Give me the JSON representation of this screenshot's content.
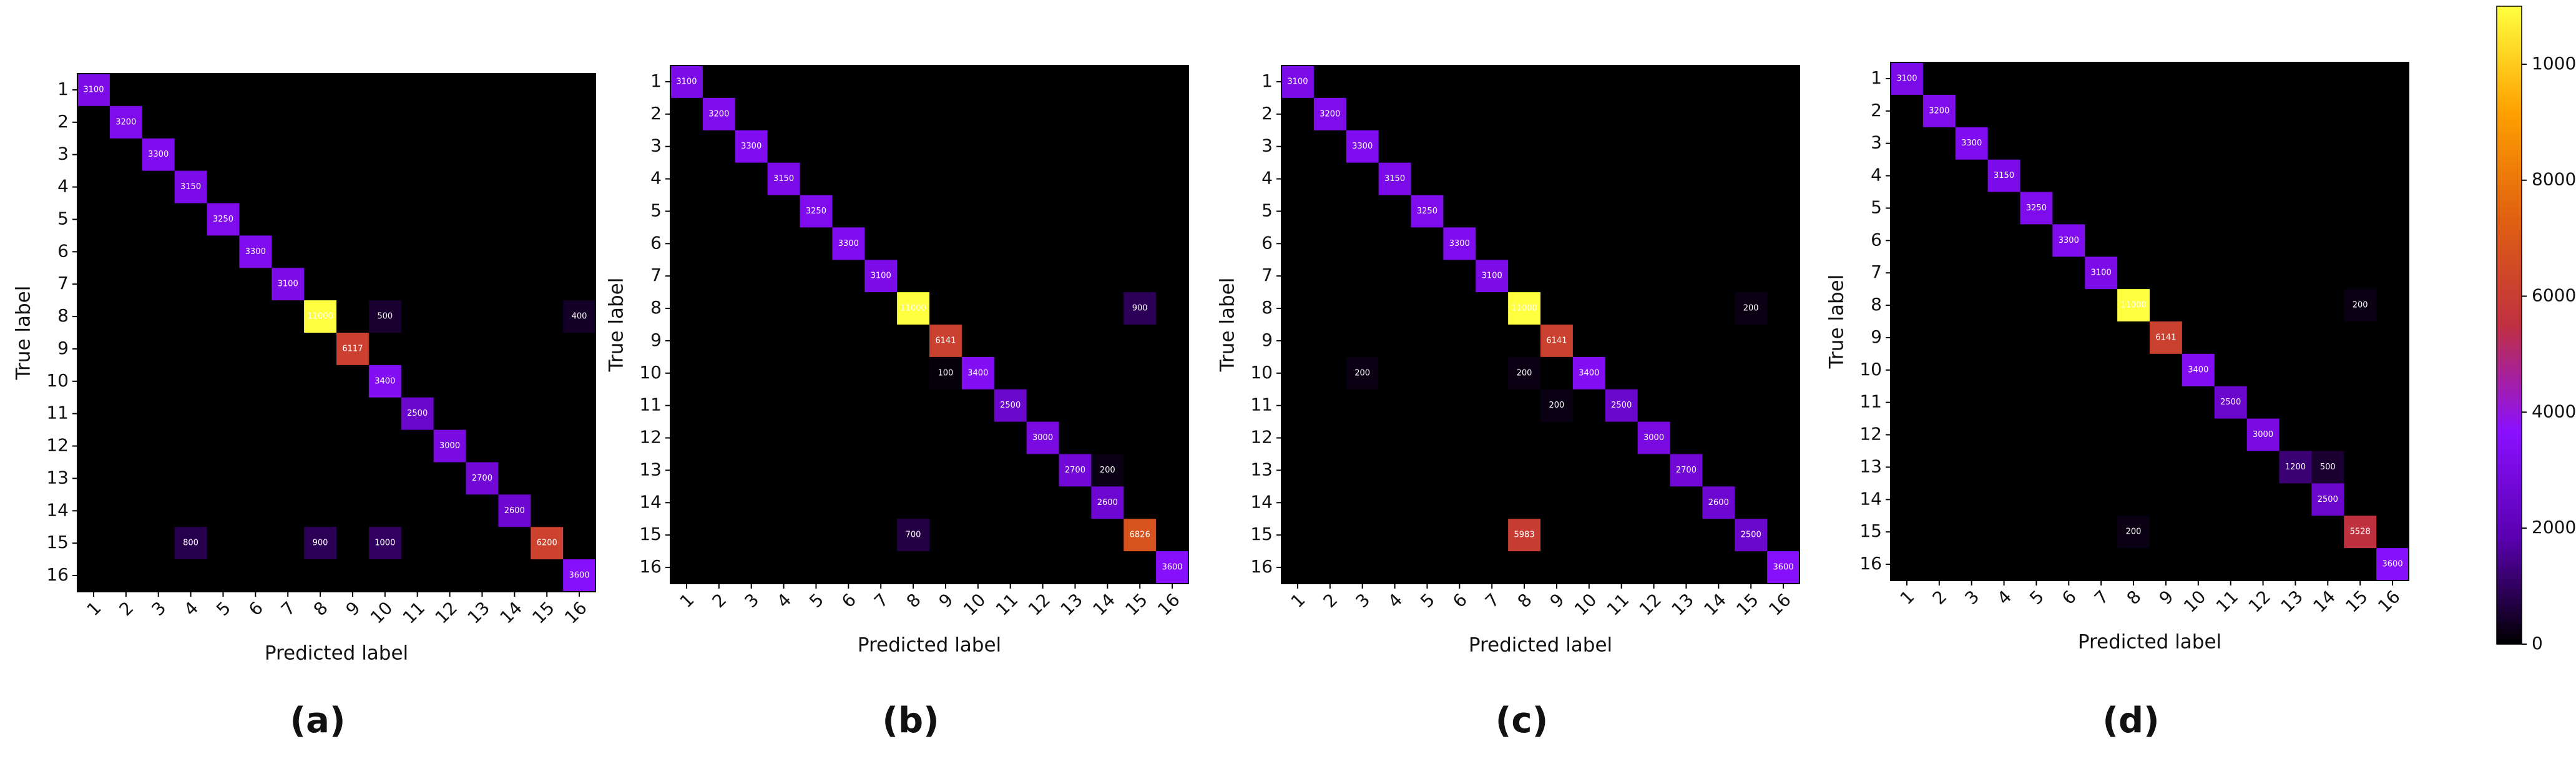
{
  "chart_data": [
    {
      "type": "heatmap",
      "caption": "(a)",
      "xlabel": "Predicted label",
      "ylabel": "True label",
      "categories": [
        "1",
        "2",
        "3",
        "4",
        "5",
        "6",
        "7",
        "8",
        "9",
        "10",
        "11",
        "12",
        "13",
        "14",
        "15",
        "16"
      ],
      "zlim": [
        0,
        11000
      ],
      "colorscale": [
        "#000000",
        "#5a00b0",
        "#8a10ff",
        "#c03040",
        "#e06010",
        "#ffa000",
        "#ffff40"
      ],
      "values": [
        [
          3100,
          0,
          0,
          0,
          0,
          0,
          0,
          0,
          0,
          0,
          0,
          0,
          0,
          0,
          0,
          0
        ],
        [
          0,
          3200,
          0,
          0,
          0,
          0,
          0,
          0,
          0,
          0,
          0,
          0,
          0,
          0,
          0,
          0
        ],
        [
          0,
          0,
          3300,
          0,
          0,
          0,
          0,
          0,
          0,
          0,
          0,
          0,
          0,
          0,
          0,
          0
        ],
        [
          0,
          0,
          0,
          3150,
          0,
          0,
          0,
          0,
          0,
          0,
          0,
          0,
          0,
          0,
          0,
          0
        ],
        [
          0,
          0,
          0,
          0,
          3250,
          0,
          0,
          0,
          0,
          0,
          0,
          0,
          0,
          0,
          0,
          0
        ],
        [
          0,
          0,
          0,
          0,
          0,
          3300,
          0,
          0,
          0,
          0,
          0,
          0,
          0,
          0,
          0,
          0
        ],
        [
          0,
          0,
          0,
          0,
          0,
          0,
          3100,
          0,
          0,
          0,
          0,
          0,
          0,
          0,
          0,
          0
        ],
        [
          0,
          0,
          0,
          0,
          0,
          0,
          0,
          11000,
          0,
          500,
          0,
          0,
          0,
          0,
          0,
          400
        ],
        [
          0,
          0,
          0,
          0,
          0,
          0,
          0,
          0,
          6117,
          0,
          0,
          0,
          0,
          0,
          0,
          0
        ],
        [
          0,
          0,
          0,
          0,
          0,
          0,
          0,
          0,
          0,
          3400,
          0,
          0,
          0,
          0,
          0,
          0
        ],
        [
          0,
          0,
          0,
          0,
          0,
          0,
          0,
          0,
          0,
          0,
          2500,
          0,
          0,
          0,
          0,
          0
        ],
        [
          0,
          0,
          0,
          0,
          0,
          0,
          0,
          0,
          0,
          0,
          0,
          3000,
          0,
          0,
          0,
          0
        ],
        [
          0,
          0,
          0,
          0,
          0,
          0,
          0,
          0,
          0,
          0,
          0,
          0,
          2700,
          0,
          0,
          0
        ],
        [
          0,
          0,
          0,
          0,
          0,
          0,
          0,
          0,
          0,
          0,
          0,
          0,
          0,
          2600,
          0,
          0
        ],
        [
          0,
          0,
          0,
          800,
          0,
          0,
          0,
          900,
          0,
          1000,
          0,
          0,
          0,
          0,
          6200,
          0
        ],
        [
          0,
          0,
          0,
          0,
          0,
          0,
          0,
          0,
          0,
          0,
          0,
          0,
          0,
          0,
          0,
          3600
        ]
      ]
    },
    {
      "type": "heatmap",
      "caption": "(b)",
      "xlabel": "Predicted label",
      "ylabel": "True label",
      "categories": [
        "1",
        "2",
        "3",
        "4",
        "5",
        "6",
        "7",
        "8",
        "9",
        "10",
        "11",
        "12",
        "13",
        "14",
        "15",
        "16"
      ],
      "zlim": [
        0,
        11000
      ],
      "colorscale": [
        "#000000",
        "#5a00b0",
        "#8a10ff",
        "#c03040",
        "#e06010",
        "#ffa000",
        "#ffff40"
      ],
      "values": [
        [
          3100,
          0,
          0,
          0,
          0,
          0,
          0,
          0,
          0,
          0,
          0,
          0,
          0,
          0,
          0,
          0
        ],
        [
          0,
          3200,
          0,
          0,
          0,
          0,
          0,
          0,
          0,
          0,
          0,
          0,
          0,
          0,
          0,
          0
        ],
        [
          0,
          0,
          3300,
          0,
          0,
          0,
          0,
          0,
          0,
          0,
          0,
          0,
          0,
          0,
          0,
          0
        ],
        [
          0,
          0,
          0,
          3150,
          0,
          0,
          0,
          0,
          0,
          0,
          0,
          0,
          0,
          0,
          0,
          0
        ],
        [
          0,
          0,
          0,
          0,
          3250,
          0,
          0,
          0,
          0,
          0,
          0,
          0,
          0,
          0,
          0,
          0
        ],
        [
          0,
          0,
          0,
          0,
          0,
          3300,
          0,
          0,
          0,
          0,
          0,
          0,
          0,
          0,
          0,
          0
        ],
        [
          0,
          0,
          0,
          0,
          0,
          0,
          3100,
          0,
          0,
          0,
          0,
          0,
          0,
          0,
          0,
          0
        ],
        [
          0,
          0,
          0,
          0,
          0,
          0,
          0,
          11000,
          0,
          0,
          0,
          0,
          0,
          0,
          900,
          0
        ],
        [
          0,
          0,
          0,
          0,
          0,
          0,
          0,
          0,
          6141,
          0,
          0,
          0,
          0,
          0,
          0,
          0
        ],
        [
          0,
          0,
          0,
          0,
          0,
          0,
          0,
          0,
          100,
          3400,
          0,
          0,
          0,
          0,
          0,
          0
        ],
        [
          0,
          0,
          0,
          0,
          0,
          0,
          0,
          0,
          0,
          0,
          2500,
          0,
          0,
          0,
          0,
          0
        ],
        [
          0,
          0,
          0,
          0,
          0,
          0,
          0,
          0,
          0,
          0,
          0,
          3000,
          0,
          0,
          0,
          0
        ],
        [
          0,
          0,
          0,
          0,
          0,
          0,
          0,
          0,
          0,
          0,
          0,
          0,
          2700,
          200,
          0,
          0
        ],
        [
          0,
          0,
          0,
          0,
          0,
          0,
          0,
          0,
          0,
          0,
          0,
          0,
          0,
          2600,
          0,
          0
        ],
        [
          0,
          0,
          0,
          0,
          0,
          0,
          0,
          700,
          0,
          0,
          0,
          0,
          0,
          0,
          6826,
          0
        ],
        [
          0,
          0,
          0,
          0,
          0,
          0,
          0,
          0,
          0,
          0,
          0,
          0,
          0,
          0,
          0,
          3600
        ]
      ]
    },
    {
      "type": "heatmap",
      "caption": "(c)",
      "xlabel": "Predicted label",
      "ylabel": "True label",
      "categories": [
        "1",
        "2",
        "3",
        "4",
        "5",
        "6",
        "7",
        "8",
        "9",
        "10",
        "11",
        "12",
        "13",
        "14",
        "15",
        "16"
      ],
      "zlim": [
        0,
        11000
      ],
      "colorscale": [
        "#000000",
        "#5a00b0",
        "#8a10ff",
        "#c03040",
        "#e06010",
        "#ffa000",
        "#ffff40"
      ],
      "values": [
        [
          3100,
          0,
          0,
          0,
          0,
          0,
          0,
          0,
          0,
          0,
          0,
          0,
          0,
          0,
          0,
          0
        ],
        [
          0,
          3200,
          0,
          0,
          0,
          0,
          0,
          0,
          0,
          0,
          0,
          0,
          0,
          0,
          0,
          0
        ],
        [
          0,
          0,
          3300,
          0,
          0,
          0,
          0,
          0,
          0,
          0,
          0,
          0,
          0,
          0,
          0,
          0
        ],
        [
          0,
          0,
          0,
          3150,
          0,
          0,
          0,
          0,
          0,
          0,
          0,
          0,
          0,
          0,
          0,
          0
        ],
        [
          0,
          0,
          0,
          0,
          3250,
          0,
          0,
          0,
          0,
          0,
          0,
          0,
          0,
          0,
          0,
          0
        ],
        [
          0,
          0,
          0,
          0,
          0,
          3300,
          0,
          0,
          0,
          0,
          0,
          0,
          0,
          0,
          0,
          0
        ],
        [
          0,
          0,
          0,
          0,
          0,
          0,
          3100,
          0,
          0,
          0,
          0,
          0,
          0,
          0,
          0,
          0
        ],
        [
          0,
          0,
          0,
          0,
          0,
          0,
          0,
          11000,
          0,
          0,
          0,
          0,
          0,
          0,
          200,
          0
        ],
        [
          0,
          0,
          0,
          0,
          0,
          0,
          0,
          0,
          6141,
          0,
          0,
          0,
          0,
          0,
          0,
          0
        ],
        [
          0,
          0,
          200,
          0,
          0,
          0,
          0,
          200,
          0,
          3400,
          0,
          0,
          0,
          0,
          0,
          0
        ],
        [
          0,
          0,
          0,
          0,
          0,
          0,
          0,
          0,
          200,
          0,
          2500,
          0,
          0,
          0,
          0,
          0
        ],
        [
          0,
          0,
          0,
          0,
          0,
          0,
          0,
          0,
          0,
          0,
          0,
          3000,
          0,
          0,
          0,
          0
        ],
        [
          0,
          0,
          0,
          0,
          0,
          0,
          0,
          0,
          0,
          0,
          0,
          0,
          2700,
          0,
          0,
          0
        ],
        [
          0,
          0,
          0,
          0,
          0,
          0,
          0,
          0,
          0,
          0,
          0,
          0,
          0,
          2600,
          0,
          0
        ],
        [
          0,
          0,
          0,
          0,
          0,
          0,
          0,
          5983,
          0,
          0,
          0,
          0,
          0,
          0,
          2500,
          0
        ],
        [
          0,
          0,
          0,
          0,
          0,
          0,
          0,
          0,
          0,
          0,
          0,
          0,
          0,
          0,
          0,
          3600
        ]
      ]
    },
    {
      "type": "heatmap",
      "caption": "(d)",
      "xlabel": "Predicted label",
      "ylabel": "True label",
      "categories": [
        "1",
        "2",
        "3",
        "4",
        "5",
        "6",
        "7",
        "8",
        "9",
        "10",
        "11",
        "12",
        "13",
        "14",
        "15",
        "16"
      ],
      "zlim": [
        0,
        11000
      ],
      "zticks": [
        0,
        2000,
        4000,
        6000,
        8000,
        10000
      ],
      "colorbar": true,
      "colorscale": [
        "#000000",
        "#5a00b0",
        "#8a10ff",
        "#c03040",
        "#e06010",
        "#ffa000",
        "#ffff40"
      ],
      "values": [
        [
          3100,
          0,
          0,
          0,
          0,
          0,
          0,
          0,
          0,
          0,
          0,
          0,
          0,
          0,
          0,
          0
        ],
        [
          0,
          3200,
          0,
          0,
          0,
          0,
          0,
          0,
          0,
          0,
          0,
          0,
          0,
          0,
          0,
          0
        ],
        [
          0,
          0,
          3300,
          0,
          0,
          0,
          0,
          0,
          0,
          0,
          0,
          0,
          0,
          0,
          0,
          0
        ],
        [
          0,
          0,
          0,
          3150,
          0,
          0,
          0,
          0,
          0,
          0,
          0,
          0,
          0,
          0,
          0,
          0
        ],
        [
          0,
          0,
          0,
          0,
          3250,
          0,
          0,
          0,
          0,
          0,
          0,
          0,
          0,
          0,
          0,
          0
        ],
        [
          0,
          0,
          0,
          0,
          0,
          3300,
          0,
          0,
          0,
          0,
          0,
          0,
          0,
          0,
          0,
          0
        ],
        [
          0,
          0,
          0,
          0,
          0,
          0,
          3100,
          0,
          0,
          0,
          0,
          0,
          0,
          0,
          0,
          0
        ],
        [
          0,
          0,
          0,
          0,
          0,
          0,
          0,
          11000,
          0,
          0,
          0,
          0,
          0,
          0,
          200,
          0
        ],
        [
          0,
          0,
          0,
          0,
          0,
          0,
          0,
          0,
          6141,
          0,
          0,
          0,
          0,
          0,
          0,
          0
        ],
        [
          0,
          0,
          0,
          0,
          0,
          0,
          0,
          0,
          0,
          3400,
          0,
          0,
          0,
          0,
          0,
          0
        ],
        [
          0,
          0,
          0,
          0,
          0,
          0,
          0,
          0,
          0,
          0,
          2500,
          0,
          0,
          0,
          0,
          0
        ],
        [
          0,
          0,
          0,
          0,
          0,
          0,
          0,
          0,
          0,
          0,
          0,
          3000,
          0,
          0,
          0,
          0
        ],
        [
          0,
          0,
          0,
          0,
          0,
          0,
          0,
          0,
          0,
          0,
          0,
          0,
          1200,
          500,
          0,
          0
        ],
        [
          0,
          0,
          0,
          0,
          0,
          0,
          0,
          0,
          0,
          0,
          0,
          0,
          0,
          2500,
          0,
          0
        ],
        [
          0,
          0,
          0,
          0,
          0,
          0,
          0,
          200,
          0,
          0,
          0,
          0,
          0,
          0,
          5528,
          0
        ],
        [
          0,
          0,
          0,
          0,
          0,
          0,
          0,
          0,
          0,
          0,
          0,
          0,
          0,
          0,
          0,
          3600
        ]
      ]
    }
  ]
}
